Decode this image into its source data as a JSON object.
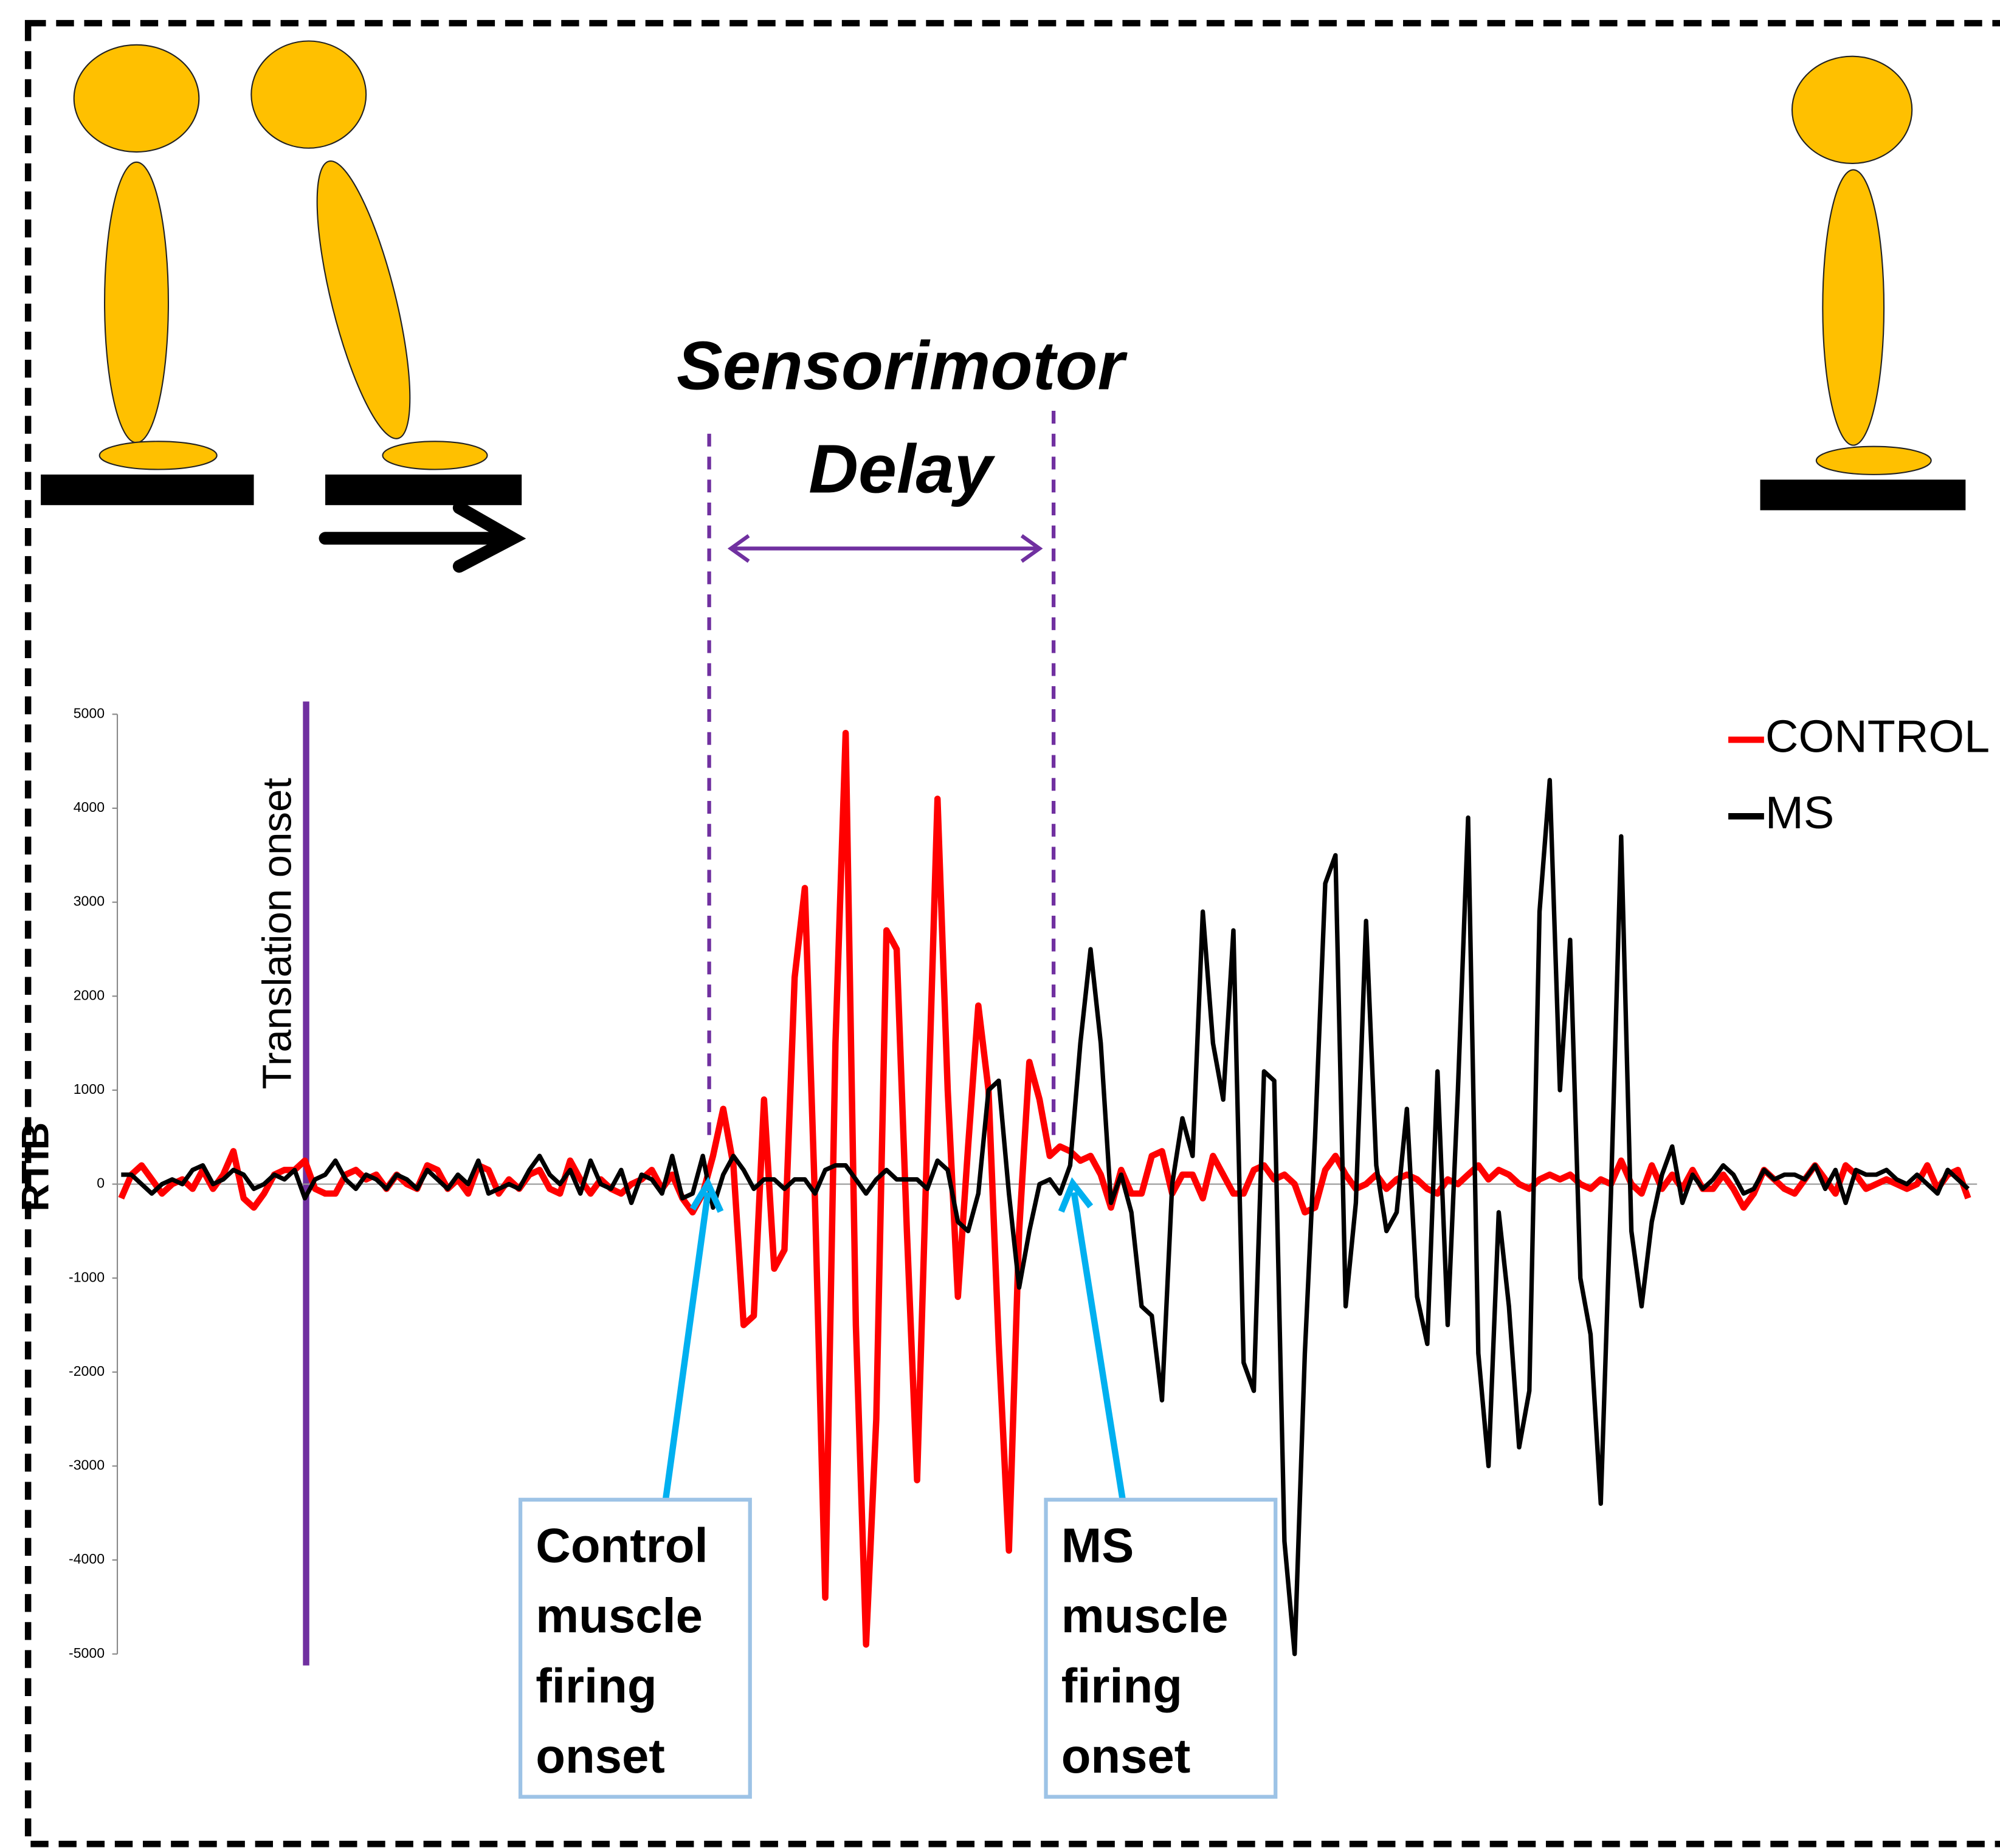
{
  "chart_data": {
    "type": "line",
    "title": [
      "Sensorimotor",
      "Delay"
    ],
    "ylabel": "RTIB",
    "annotations": {
      "translation": "Translation onset",
      "control_box": [
        "Control",
        "muscle",
        "firing",
        "onset"
      ],
      "ms_box": [
        "MS",
        "muscle",
        "firing",
        "onset"
      ]
    },
    "ylim": [
      -5000,
      5000
    ],
    "yticks": [
      -5000,
      -4000,
      -3000,
      -2000,
      -1000,
      0,
      1000,
      2000,
      3000,
      4000,
      5000
    ],
    "legend": "upper right",
    "series": [
      {
        "name": "CONTROL",
        "color": "#ff0000",
        "values": [
          -150,
          100,
          200,
          50,
          -100,
          0,
          50,
          -50,
          150,
          -50,
          100,
          350,
          -150,
          -250,
          -100,
          100,
          150,
          150,
          250,
          -50,
          -100,
          -100,
          100,
          150,
          50,
          100,
          -50,
          100,
          0,
          -50,
          200,
          150,
          -50,
          50,
          -100,
          200,
          150,
          -100,
          50,
          -50,
          100,
          150,
          -50,
          -100,
          250,
          50,
          -100,
          50,
          -50,
          -100,
          0,
          50,
          150,
          -50,
          100,
          -150,
          -300,
          -100,
          300,
          800,
          200,
          -1500,
          -1400,
          900,
          -900,
          -700,
          2200,
          3150,
          -200,
          -4400,
          1500,
          4800,
          -1500,
          -4900,
          -2500,
          2700,
          2500,
          -500,
          -3150,
          500,
          4100,
          1000,
          -1200,
          400,
          1900,
          1000,
          -1700,
          -3900,
          -500,
          1300,
          900,
          300,
          400,
          350,
          250,
          300,
          100,
          -250,
          150,
          -100,
          -100,
          300,
          350,
          -100,
          100,
          100,
          -150,
          300,
          100,
          -100,
          -100,
          150,
          200,
          50,
          100,
          0,
          -300,
          -250,
          150,
          300,
          100,
          -50,
          0,
          100,
          -50,
          50,
          100,
          50,
          -50,
          -100,
          50,
          0,
          100,
          200,
          50,
          150,
          100,
          0,
          -50,
          50,
          100,
          50,
          100,
          0,
          -50,
          50,
          0,
          250,
          0,
          -100,
          200,
          -50,
          100,
          -50,
          150,
          -50,
          -50,
          100,
          -50,
          -250,
          -100,
          150,
          50,
          -50,
          -100,
          50,
          200,
          50,
          -100,
          200,
          100,
          -50,
          0,
          50,
          0,
          -50,
          0,
          200,
          -50,
          100,
          150,
          -150
        ]
      },
      {
        "name": "MS",
        "color": "#000000",
        "values": [
          100,
          100,
          0,
          -100,
          0,
          50,
          0,
          150,
          200,
          0,
          50,
          150,
          100,
          -50,
          0,
          100,
          50,
          150,
          -150,
          50,
          100,
          250,
          50,
          -50,
          100,
          50,
          -50,
          100,
          50,
          -50,
          150,
          50,
          -50,
          100,
          0,
          250,
          -100,
          -50,
          0,
          -50,
          150,
          300,
          100,
          0,
          150,
          -100,
          250,
          0,
          -50,
          150,
          -200,
          100,
          50,
          -100,
          300,
          -150,
          -100,
          300,
          -250,
          100,
          300,
          150,
          -50,
          50,
          50,
          -50,
          50,
          50,
          -100,
          150,
          200,
          200,
          50,
          -100,
          50,
          150,
          50,
          50,
          50,
          -50,
          250,
          150,
          -400,
          -500,
          -100,
          1000,
          1100,
          -100,
          -1100,
          -500,
          0,
          50,
          -100,
          200,
          1500,
          2500,
          1500,
          -200,
          100,
          -300,
          -1300,
          -1400,
          -2300,
          0,
          700,
          300,
          2900,
          1500,
          900,
          2700,
          -1900,
          -2200,
          1200,
          1100,
          -3800,
          -5000,
          -1800,
          500,
          3200,
          3500,
          -1300,
          -200,
          2800,
          200,
          -500,
          -300,
          800,
          -1200,
          -1700,
          1200,
          -1500,
          1000,
          3900,
          -1800,
          -3000,
          -300,
          -1300,
          -2800,
          -2200,
          2900,
          4300,
          1000,
          2600,
          -1000,
          -1600,
          -3400,
          -100,
          3700,
          -500,
          -1300,
          -400,
          100,
          400,
          -200,
          100,
          -50,
          50,
          200,
          100,
          -100,
          -50,
          150,
          50,
          100,
          100,
          50,
          200,
          -50,
          150,
          -200,
          150,
          100,
          100,
          150,
          50,
          0,
          100,
          0,
          -100,
          150,
          50,
          -50
        ]
      }
    ]
  }
}
